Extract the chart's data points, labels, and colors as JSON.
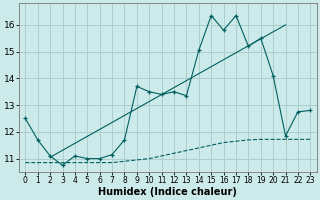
{
  "xlabel": "Humidex (Indice chaleur)",
  "background_color": "#cdeaea",
  "grid_color": "#aecece",
  "line_color": "#006060",
  "xlim": [
    -0.5,
    23.5
  ],
  "ylim": [
    10.5,
    16.8
  ],
  "yticks": [
    11,
    12,
    13,
    14,
    15,
    16
  ],
  "xticks": [
    0,
    1,
    2,
    3,
    4,
    5,
    6,
    7,
    8,
    9,
    10,
    11,
    12,
    13,
    14,
    15,
    16,
    17,
    18,
    19,
    20,
    21,
    22,
    23
  ],
  "series_zigzag_x": [
    0,
    1,
    2,
    3,
    4,
    5,
    6,
    7,
    8,
    9,
    10,
    11,
    12,
    13,
    14,
    15,
    16,
    17,
    18,
    19,
    20,
    21,
    22,
    23
  ],
  "series_zigzag_y": [
    12.5,
    11.7,
    11.1,
    10.75,
    11.1,
    11.0,
    11.0,
    11.15,
    11.7,
    13.7,
    13.5,
    13.4,
    13.5,
    13.35,
    15.05,
    16.35,
    15.8,
    16.35,
    15.2,
    15.5,
    14.1,
    11.85,
    12.75,
    12.8
  ],
  "series_trend_x": [
    2,
    21
  ],
  "series_trend_y": [
    11.05,
    16.0
  ],
  "series_dashed_x": [
    0,
    1,
    2,
    3,
    4,
    5,
    6,
    7,
    8,
    9,
    10,
    11,
    12,
    13,
    14,
    15,
    16,
    17,
    18,
    19,
    20,
    21,
    22,
    23
  ],
  "series_dashed_y": [
    10.85,
    10.85,
    10.85,
    10.85,
    10.85,
    10.85,
    10.85,
    10.85,
    10.9,
    10.95,
    11.0,
    11.1,
    11.2,
    11.3,
    11.4,
    11.5,
    11.6,
    11.65,
    11.7,
    11.72,
    11.72,
    11.72,
    11.72,
    11.72
  ]
}
